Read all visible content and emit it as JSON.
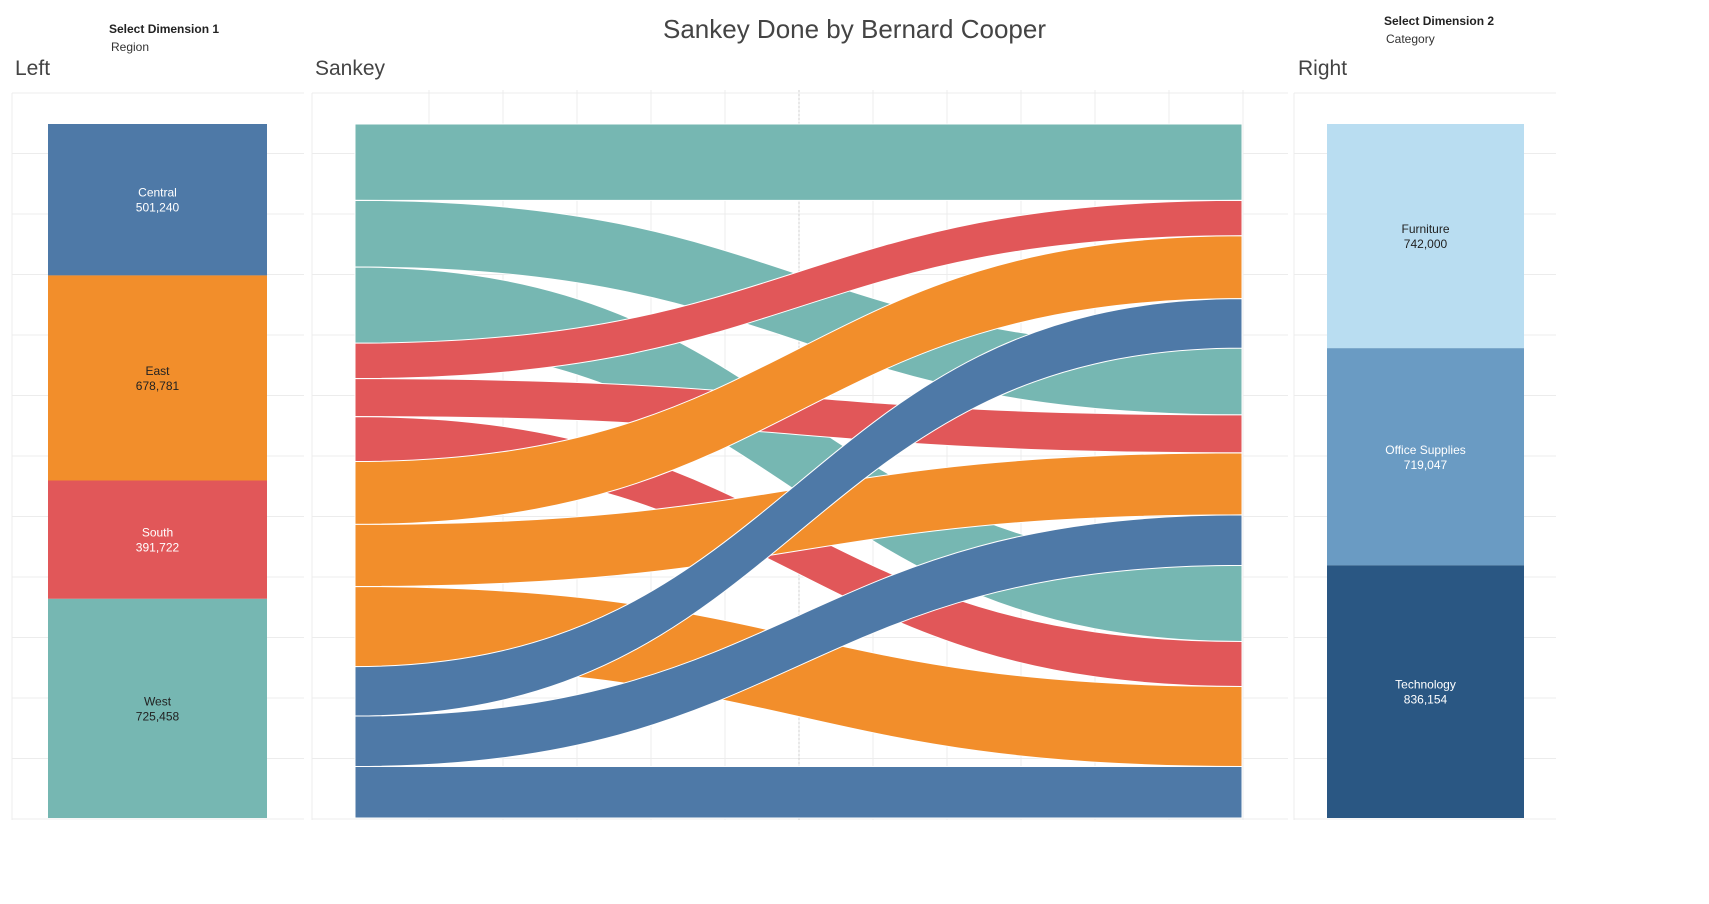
{
  "title": "Sankey Done by Bernard Cooper",
  "selectors": {
    "dim1": {
      "label": "Select Dimension 1",
      "value": "Region"
    },
    "dim2": {
      "label": "Select Dimension 2",
      "value": "Category"
    }
  },
  "sections": {
    "left": "Left",
    "sankey": "Sankey",
    "right": "Right"
  },
  "chart_data": {
    "type": "sankey",
    "left": [
      {
        "name": "Central",
        "value": 501240,
        "label_value": "501,240",
        "color": "#4E79A7",
        "text_color": "#ffffff"
      },
      {
        "name": "East",
        "value": 678781,
        "label_value": "678,781",
        "color": "#F28E2B",
        "text_color": "#222222"
      },
      {
        "name": "South",
        "value": 391722,
        "label_value": "391,722",
        "color": "#E15759",
        "text_color": "#ffffff"
      },
      {
        "name": "West",
        "value": 725458,
        "label_value": "725,458",
        "color": "#76B7B2",
        "text_color": "#222222"
      }
    ],
    "right": [
      {
        "name": "Furniture",
        "value": 742000,
        "label_value": "742,000",
        "color": "#B9DDF1",
        "text_color": "#222222"
      },
      {
        "name": "Office Supplies",
        "value": 719047,
        "label_value": "719,047",
        "color": "#6A9BC3",
        "text_color": "#ffffff"
      },
      {
        "name": "Technology",
        "value": 836154,
        "label_value": "836,154",
        "color": "#2A5783",
        "text_color": "#ffffff"
      }
    ],
    "flows": [
      {
        "source": "West",
        "target": "Furniture",
        "value": 252613
      },
      {
        "source": "West",
        "target": "Office Supplies",
        "value": 220853
      },
      {
        "source": "West",
        "target": "Technology",
        "value": 251992
      },
      {
        "source": "South",
        "target": "Furniture",
        "value": 117299
      },
      {
        "source": "South",
        "target": "Office Supplies",
        "value": 125651
      },
      {
        "source": "South",
        "target": "Technology",
        "value": 148772
      },
      {
        "source": "East",
        "target": "Furniture",
        "value": 208291
      },
      {
        "source": "East",
        "target": "Office Supplies",
        "value": 205516
      },
      {
        "source": "East",
        "target": "Technology",
        "value": 264974
      },
      {
        "source": "Central",
        "target": "Furniture",
        "value": 163797
      },
      {
        "source": "Central",
        "target": "Office Supplies",
        "value": 167027
      },
      {
        "source": "Central",
        "target": "Technology",
        "value": 170416
      }
    ],
    "sankey_left_order": [
      "West",
      "South",
      "East",
      "Central"
    ],
    "sankey_right_order": [
      "Furniture",
      "Office Supplies",
      "Technology"
    ]
  }
}
